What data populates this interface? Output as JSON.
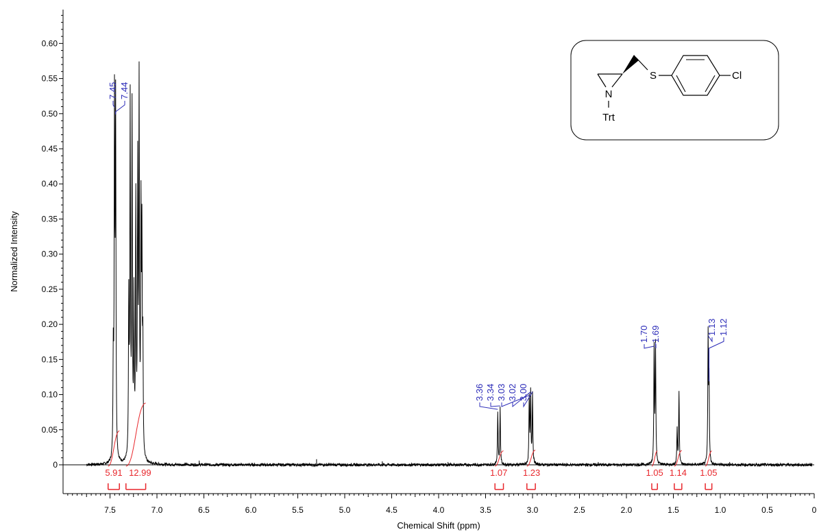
{
  "chart_data": {
    "type": "line",
    "xlabel": "Chemical Shift (ppm)",
    "ylabel": "Normalized Intensity",
    "xlim": [
      8.0,
      0.0
    ],
    "ylim": [
      -0.04,
      0.66
    ],
    "x_ticks": [
      "7.5",
      "7.0",
      "6.5",
      "6.0",
      "5.5",
      "5.0",
      "4.5",
      "4.0",
      "3.5",
      "3.0",
      "2.5",
      "2.0",
      "1.5",
      "1.0",
      "0.5",
      "0"
    ],
    "y_ticks": [
      "0",
      "0.05",
      "0.10",
      "0.15",
      "0.20",
      "0.25",
      "0.30",
      "0.35",
      "0.40",
      "0.45",
      "0.50",
      "0.55",
      "0.60"
    ],
    "peaks": [
      {
        "x": 7.465,
        "y": 0.14
      },
      {
        "x": 7.452,
        "y": 0.505
      },
      {
        "x": 7.44,
        "y": 0.495
      },
      {
        "x": 7.3,
        "y": 0.22
      },
      {
        "x": 7.285,
        "y": 0.5
      },
      {
        "x": 7.265,
        "y": 0.49
      },
      {
        "x": 7.245,
        "y": 0.22
      },
      {
        "x": 7.225,
        "y": 0.36
      },
      {
        "x": 7.205,
        "y": 0.4
      },
      {
        "x": 7.19,
        "y": 0.52
      },
      {
        "x": 7.17,
        "y": 0.33
      },
      {
        "x": 7.16,
        "y": 0.29
      },
      {
        "x": 7.15,
        "y": 0.15
      },
      {
        "x": 3.37,
        "y": 0.075
      },
      {
        "x": 3.345,
        "y": 0.08
      },
      {
        "x": 3.035,
        "y": 0.095
      },
      {
        "x": 3.02,
        "y": 0.1
      },
      {
        "x": 3.0,
        "y": 0.1
      },
      {
        "x": 1.705,
        "y": 0.165
      },
      {
        "x": 1.69,
        "y": 0.17
      },
      {
        "x": 1.46,
        "y": 0.05
      },
      {
        "x": 1.44,
        "y": 0.105
      },
      {
        "x": 1.13,
        "y": 0.18
      },
      {
        "x": 1.12,
        "y": 0.115
      }
    ],
    "peak_labels": [
      {
        "label": "7.45",
        "x": 7.452
      },
      {
        "label": "7.44",
        "x": 7.44
      },
      {
        "label": "3.36",
        "x": 3.37
      },
      {
        "label": "3.34",
        "x": 3.345
      },
      {
        "label": "3.03",
        "x": 3.035
      },
      {
        "label": "3.02",
        "x": 3.02
      },
      {
        "label": "3.00",
        "x": 3.0
      },
      {
        "label": "1.70",
        "x": 1.705
      },
      {
        "label": "1.69",
        "x": 1.69
      },
      {
        "label": "1.13",
        "x": 1.13
      },
      {
        "label": "1.12",
        "x": 1.12
      }
    ],
    "integrals": [
      {
        "value": "5.91",
        "range": [
          7.52,
          7.4
        ],
        "center": 7.46
      },
      {
        "value": "12.99",
        "range": [
          7.33,
          7.12
        ],
        "center": 7.18
      },
      {
        "value": "1.07",
        "range": [
          3.4,
          3.31
        ],
        "center": 3.36
      },
      {
        "value": "1.23",
        "range": [
          3.06,
          2.97
        ],
        "center": 3.01
      },
      {
        "value": "1.05",
        "range": [
          1.73,
          1.67
        ],
        "center": 1.7
      },
      {
        "value": "1.14",
        "range": [
          1.49,
          1.41
        ],
        "center": 1.45
      },
      {
        "value": "1.05",
        "range": [
          1.16,
          1.09
        ],
        "center": 1.125
      }
    ],
    "structure_labels": {
      "n": "N",
      "s": "S",
      "cl": "Cl",
      "trt": "Trt"
    },
    "colors": {
      "spectrum": "#000000",
      "peak_label": "#2b2bb8",
      "integral": "#e8262b",
      "axis": "#000000"
    }
  }
}
